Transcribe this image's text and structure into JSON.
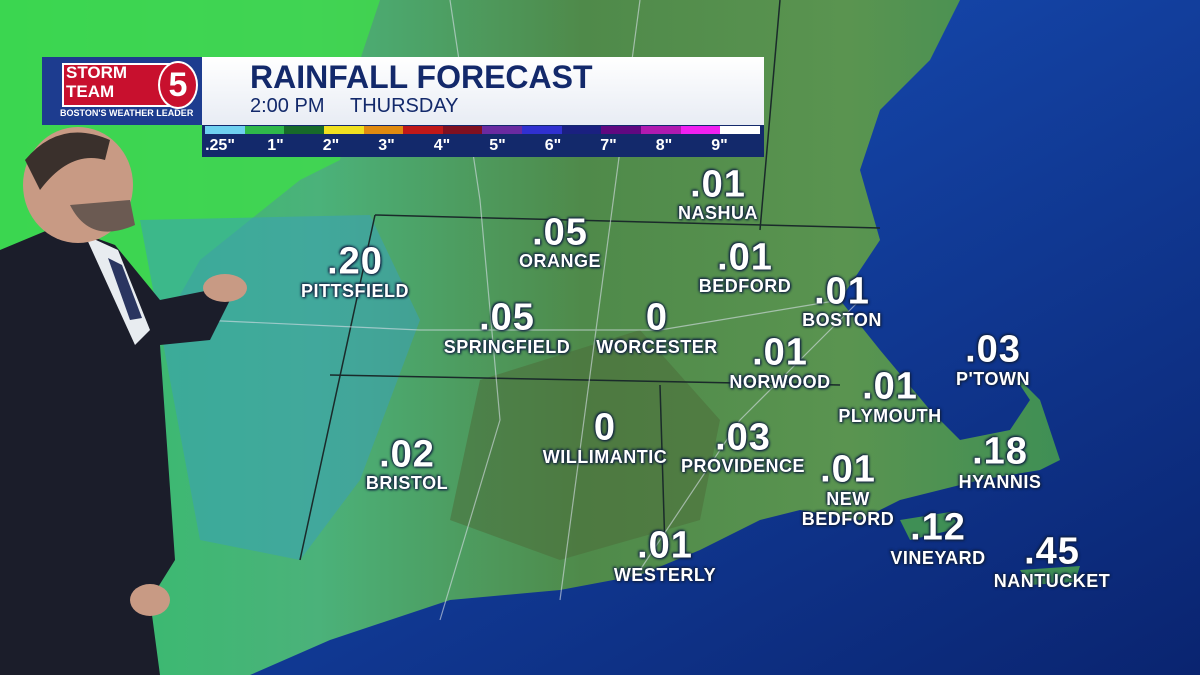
{
  "logo": {
    "line1": "STORM",
    "line2": "TEAM",
    "number": "5",
    "tagline": "BOSTON'S WEATHER LEADER"
  },
  "header": {
    "title": "RAINFALL FORECAST",
    "time": "2:00 PM",
    "day": "THURSDAY"
  },
  "legend": {
    "labels": [
      ".25\"",
      "1\"",
      "2\"",
      "3\"",
      "4\"",
      "5\"",
      "6\"",
      "7\"",
      "8\"",
      "9\""
    ]
  },
  "locations": [
    {
      "name": "NASHUA",
      "value": ".01"
    },
    {
      "name": "ORANGE",
      "value": ".05"
    },
    {
      "name": "PITTSFIELD",
      "value": ".20"
    },
    {
      "name": "BEDFORD",
      "value": ".01"
    },
    {
      "name": "BOSTON",
      "value": ".01"
    },
    {
      "name": "SPRINGFIELD",
      "value": ".05"
    },
    {
      "name": "WORCESTER",
      "value": "0"
    },
    {
      "name": "NORWOOD",
      "value": ".01"
    },
    {
      "name": "P'TOWN",
      "value": ".03"
    },
    {
      "name": "PLYMOUTH",
      "value": ".01"
    },
    {
      "name": "BRISTOL",
      "value": ".02"
    },
    {
      "name": "WILLIMANTIC",
      "value": "0"
    },
    {
      "name": "PROVIDENCE",
      "value": ".03"
    },
    {
      "name": "HYANNIS",
      "value": ".18"
    },
    {
      "name": "NEW\nBEDFORD",
      "value": ".01"
    },
    {
      "name": "VINEYARD",
      "value": ".12"
    },
    {
      "name": "WESTERLY",
      "value": ".01"
    },
    {
      "name": "NANTUCKET",
      "value": ".45"
    }
  ]
}
